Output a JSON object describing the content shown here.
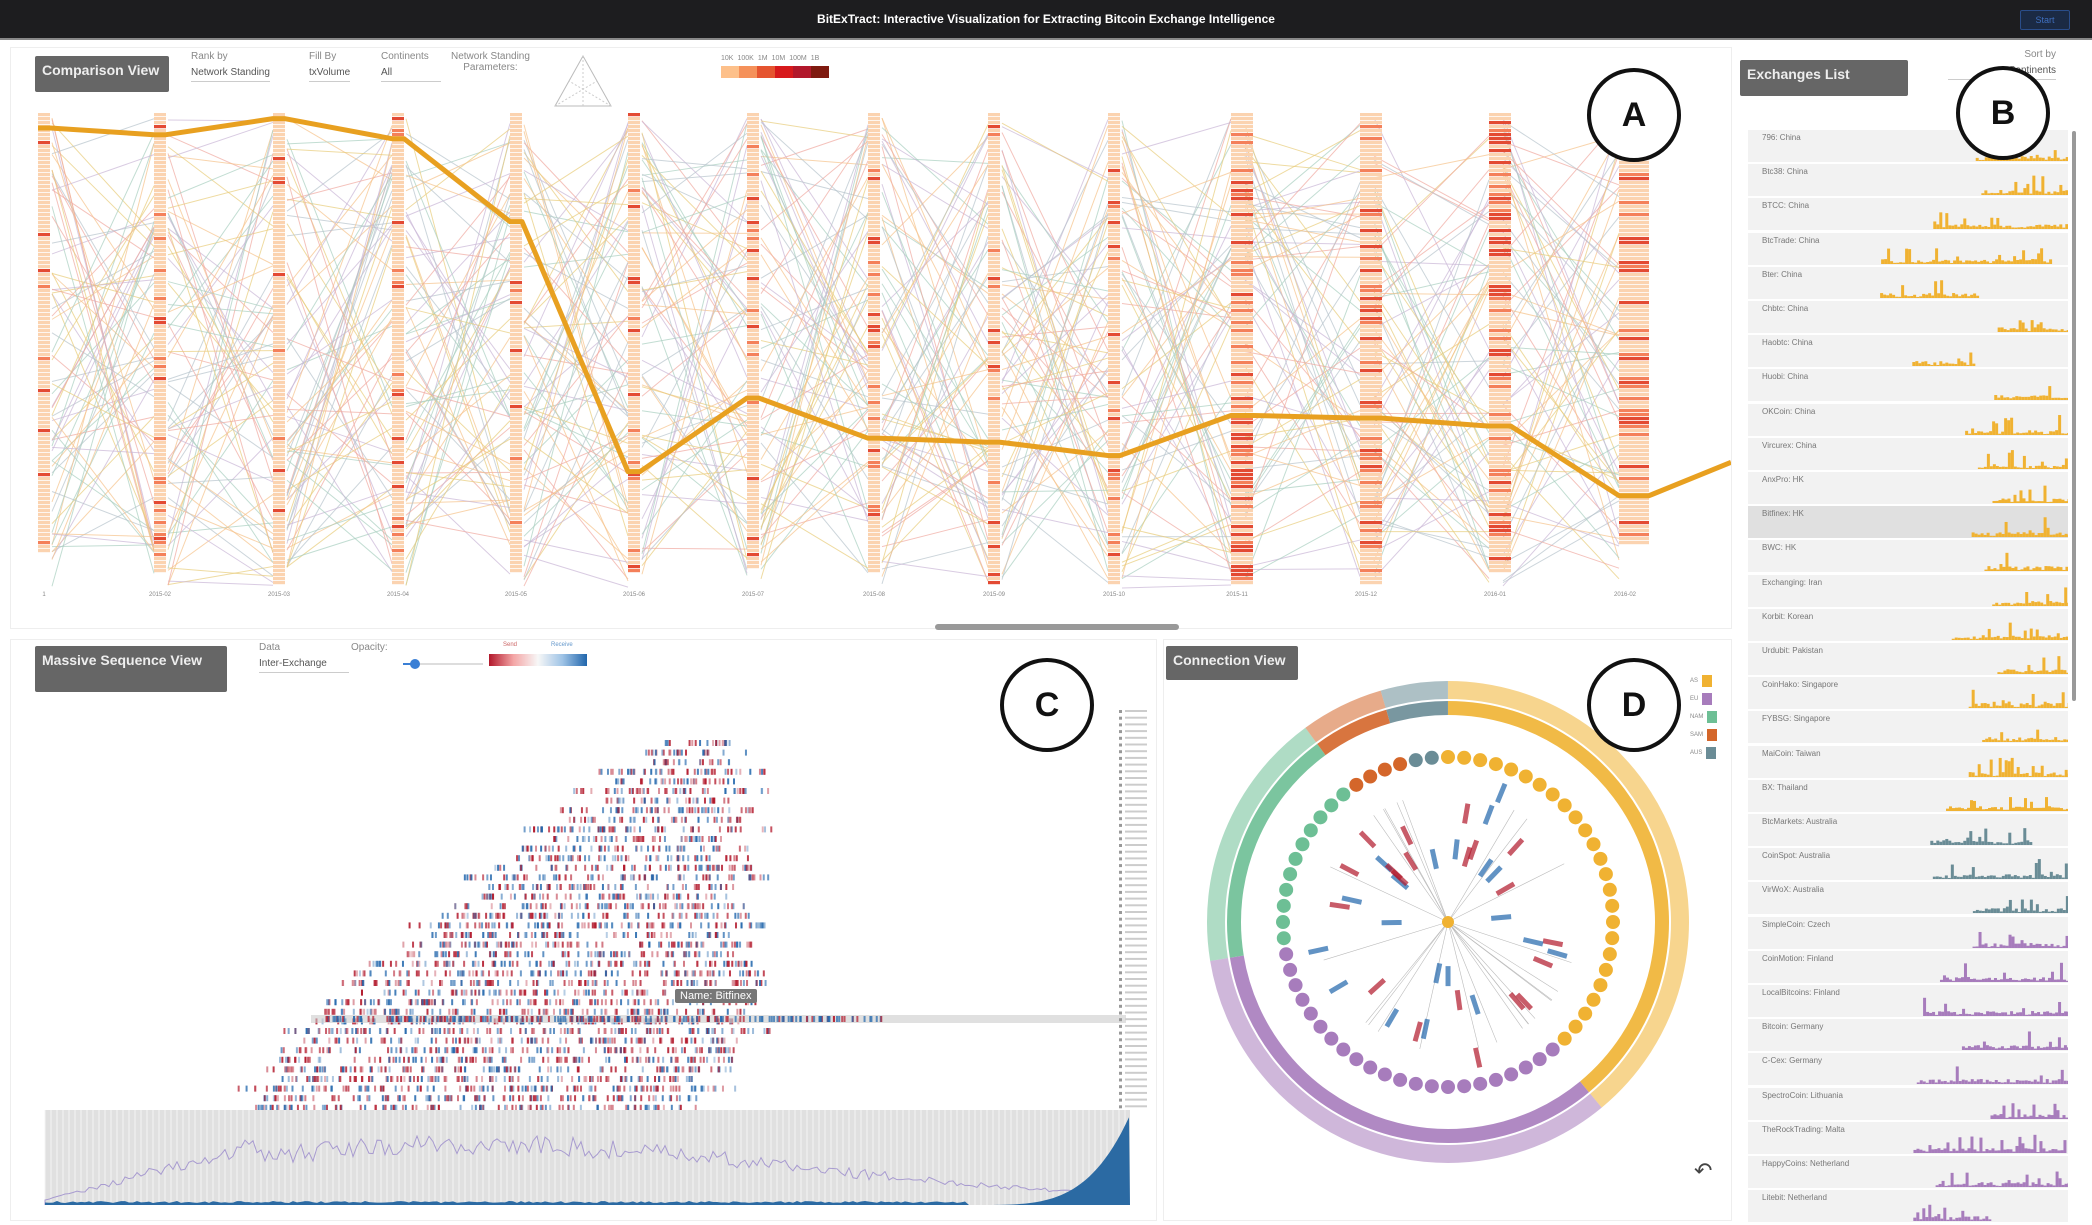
{
  "app": {
    "title": "BitExTract: Interactive Visualization for Extracting Bitcoin Exchange Intelligence",
    "top_button": "Start"
  },
  "callouts": [
    "A",
    "B",
    "C",
    "D"
  ],
  "comparison": {
    "title": "Comparison View",
    "rank_by": {
      "label": "Rank by",
      "value": "Network Standing"
    },
    "fill_by": {
      "label": "Fill By",
      "value": "txVolume"
    },
    "continents": {
      "label": "Continents",
      "value": "All"
    },
    "network_standing": {
      "label": "Network Standing",
      "sublabel": "Parameters:"
    },
    "legend_labels": [
      "10K",
      "100K",
      "1M",
      "10M",
      "100M",
      "1B"
    ],
    "legend_colors": [
      "#fdc08a",
      "#f5915a",
      "#e5542f",
      "#d7191c",
      "#b2182b",
      "#7f1a10"
    ],
    "time_labels": [
      "1",
      "2015-02",
      "2015-03",
      "2015-04",
      "2015-05",
      "2015-06",
      "2015-07",
      "2015-08",
      "2015-09",
      "2015-10",
      "2015-11",
      "2015-12",
      "2016-01",
      "2016-02"
    ],
    "highlight_color": "#e8a020"
  },
  "exchanges": {
    "title": "Exchanges List",
    "sort_label": "Sort by",
    "sort_value": "Continents",
    "items": [
      {
        "name": "796: China",
        "c": "AS"
      },
      {
        "name": "Btc38: China",
        "c": "AS"
      },
      {
        "name": "BTCC: China",
        "c": "AS"
      },
      {
        "name": "BtcTrade: China",
        "c": "AS"
      },
      {
        "name": "Bter: China",
        "c": "AS"
      },
      {
        "name": "Chbtc: China",
        "c": "AS"
      },
      {
        "name": "Haobtc: China",
        "c": "AS"
      },
      {
        "name": "Huobi: China",
        "c": "AS"
      },
      {
        "name": "OKCoin: China",
        "c": "AS"
      },
      {
        "name": "Vircurex: China",
        "c": "AS"
      },
      {
        "name": "AnxPro: HK",
        "c": "AS"
      },
      {
        "name": "Bitfinex: HK",
        "c": "AS",
        "selected": true
      },
      {
        "name": "BWC: HK",
        "c": "AS"
      },
      {
        "name": "Exchanging: Iran",
        "c": "AS"
      },
      {
        "name": "Korbit: Korean",
        "c": "AS"
      },
      {
        "name": "Urdubit: Pakistan",
        "c": "AS"
      },
      {
        "name": "CoinHako: Singapore",
        "c": "AS"
      },
      {
        "name": "FYBSG: Singapore",
        "c": "AS"
      },
      {
        "name": "MaiCoin: Taiwan",
        "c": "AS"
      },
      {
        "name": "BX: Thailand",
        "c": "AS"
      },
      {
        "name": "BtcMarkets: Australia",
        "c": "AUS"
      },
      {
        "name": "CoinSpot: Australia",
        "c": "AUS"
      },
      {
        "name": "VirWoX: Australia",
        "c": "AUS"
      },
      {
        "name": "SimpleCoin: Czech",
        "c": "EU"
      },
      {
        "name": "CoinMotion: Finland",
        "c": "EU"
      },
      {
        "name": "LocalBitcoins: Finland",
        "c": "EU"
      },
      {
        "name": "Bitcoin: Germany",
        "c": "EU"
      },
      {
        "name": "C-Cex: Germany",
        "c": "EU"
      },
      {
        "name": "SpectroCoin: Lithuania",
        "c": "EU"
      },
      {
        "name": "TheRockTrading: Malta",
        "c": "EU"
      },
      {
        "name": "HappyCoins: Netherland",
        "c": "EU"
      },
      {
        "name": "Litebit: Netherland",
        "c": "EU"
      }
    ]
  },
  "sequence": {
    "title": "Massive Sequence View",
    "data_label": "Data",
    "data_value": "Inter-Exchange",
    "opacity_label": "Opacity:",
    "opacity": 0.15,
    "send_label": "Send",
    "receive_label": "Receive",
    "send_color": "#b2182b",
    "receive_color": "#2166ac",
    "tooltip": "Name: Bitfinex"
  },
  "connection": {
    "title": "Connection View",
    "legend": [
      {
        "label": "AS",
        "color": "#f0b232"
      },
      {
        "label": "EU",
        "color": "#a77cbc"
      },
      {
        "label": "NAM",
        "color": "#6dbf95"
      },
      {
        "label": "SAM",
        "color": "#d4662a"
      },
      {
        "label": "AUS",
        "color": "#6a8c96"
      }
    ]
  }
}
